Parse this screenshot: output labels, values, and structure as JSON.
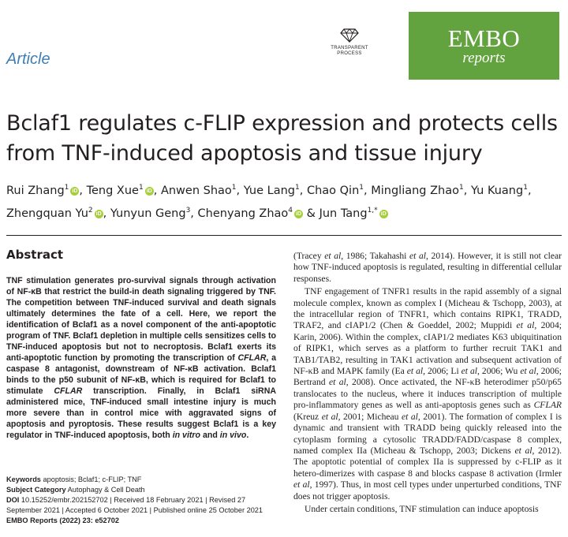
{
  "header": {
    "article_label": "Article",
    "transparent_process": [
      "TRANSPARENT",
      "PROCESS"
    ],
    "journal_name": "EMBO",
    "journal_sub": "reports",
    "brand_color": "#63a33f",
    "accent_color": "#3f7db5",
    "icon": "diamond-icon"
  },
  "title": "Bclaf1 regulates c-FLIP expression and protects cells from TNF-induced apoptosis and tissue injury",
  "authors": [
    {
      "name": "Rui Zhang",
      "sup": "1",
      "orcid": true,
      "sep": ", "
    },
    {
      "name": "Teng Xue",
      "sup": "1",
      "orcid": true,
      "sep": ", "
    },
    {
      "name": "Anwen Shao",
      "sup": "1",
      "orcid": false,
      "sep": ", "
    },
    {
      "name": "Yue Lang",
      "sup": "1",
      "orcid": false,
      "sep": ", "
    },
    {
      "name": "Chao Qin",
      "sup": "1",
      "orcid": false,
      "sep": ", "
    },
    {
      "name": "Mingliang Zhao",
      "sup": "1",
      "orcid": false,
      "sep": ", "
    },
    {
      "name": "Yu Kuang",
      "sup": "1",
      "orcid": false,
      "sep": ", "
    },
    {
      "name": "Zhengquan Yu",
      "sup": "2",
      "orcid": true,
      "sep": ", "
    },
    {
      "name": "Yunyun Geng",
      "sup": "3",
      "orcid": false,
      "sep": ", "
    },
    {
      "name": "Chenyang Zhao",
      "sup": "4",
      "orcid": true,
      "sep": " & "
    },
    {
      "name": "Jun Tang",
      "sup": "1,*",
      "orcid": true,
      "sep": ""
    }
  ],
  "abstract": {
    "heading": "Abstract",
    "html": "TNF stimulation generates pro-survival signals through activation of NF-κB that restrict the build-in death signaling triggered by TNF. The competition between TNF-induced survival and death signals ultimately determines the fate of a cell. Here, we report the identification of Bclaf1 as a novel component of the anti-apoptotic program of TNF. Bclaf1 depletion in multiple cells sensitizes cells to TNF-induced apoptosis but not to necroptosis. Bclaf1 exerts its anti-apoptotic function by promoting the transcription of <i>CFLAR</i>, a caspase 8 antagonist, downstream of NF-κB activation. Bclaf1 binds to the p50 subunit of NF-κB, which is required for Bclaf1 to stimulate <i>CFLAR</i> transcription. Finally, in Bclaf1 siRNA administered mice, TNF-induced small intestine injury is much more severe than in control mice with aggravated signs of apoptosis and pyroptosis. These results suggest Bclaf1 is a key regulator in TNF-induced apoptosis, both <i>in vitro</i> and <i>in vivo</i>."
  },
  "meta": {
    "keywords_label": "Keywords",
    "keywords": "apoptosis; Bclaf1; c-FLIP; TNF",
    "subject_label": "Subject Category",
    "subject": "Autophagy & Cell Death",
    "doi_label": "DOI",
    "doi_line": "10.15252/embr.202152702 | Received 18 February 2021 | Revised 27 September 2021 | Accepted 6 October 2021 | Published online 25 October 2021",
    "journal_ref": "EMBO Reports (2022) 23: e52702"
  },
  "body": {
    "p1": "(Tracey <i>et al</i>, 1986; Takahashi <i>et al</i>, 2014). However, it is still not clear how TNF-induced apoptosis is regulated, resulting in differential cellular responses.",
    "p2": "TNF engagement of TNFR1 results in the rapid assembly of a signal molecule complex, known as complex I (Micheau &amp; Tschopp, 2003), at the intracellular region of TNFR1, which contains RIPK1, TRADD, TRAF2, and cIAP1/2 (Chen &amp; Goeddel, 2002; Muppidi <i>et al</i>, 2004; Karin, 2006). Within the complex, cIAP1/2 mediates K63 ubiquitination of RIPK1, which serves as a platform to further recruit TAK1 and TAB1/TAB2, resulting in TAK1 activation and subsequent activation of NF-κB and MAPK family (Ea <i>et al</i>, 2006; Li <i>et al</i>, 2006; Wu <i>et al</i>, 2006; Bertrand <i>et al</i>, 2008). Once activated, the NF-κB heterodimer p50/p65 translocates to the nucleus, where it induces transcription of multiple pro-inflammatory genes as well as anti-apoptosis genes such as <i>CFLAR</i> (Kreuz <i>et al</i>, 2001; Micheau <i>et al</i>, 2001). The formation of complex I is dynamic and transient with TRADD being quickly released into the cytoplasm forming a cytosolic TRADD/FADD/caspase 8 complex, named complex IIa (Micheau &amp; Tschopp, 2003; Dickens <i>et al</i>, 2012). The apoptotic potential of complex IIa is suppressed by c-FLIP as it hetero-dimerizes with caspase 8 and blocks caspase 8 activation (Irmler <i>et al</i>, 1997). Thus, in most cell types under unperturbed conditions, TNF does not trigger apoptosis.",
    "p3": "Under certain conditions, TNF stimulation can induce apoptosis"
  }
}
